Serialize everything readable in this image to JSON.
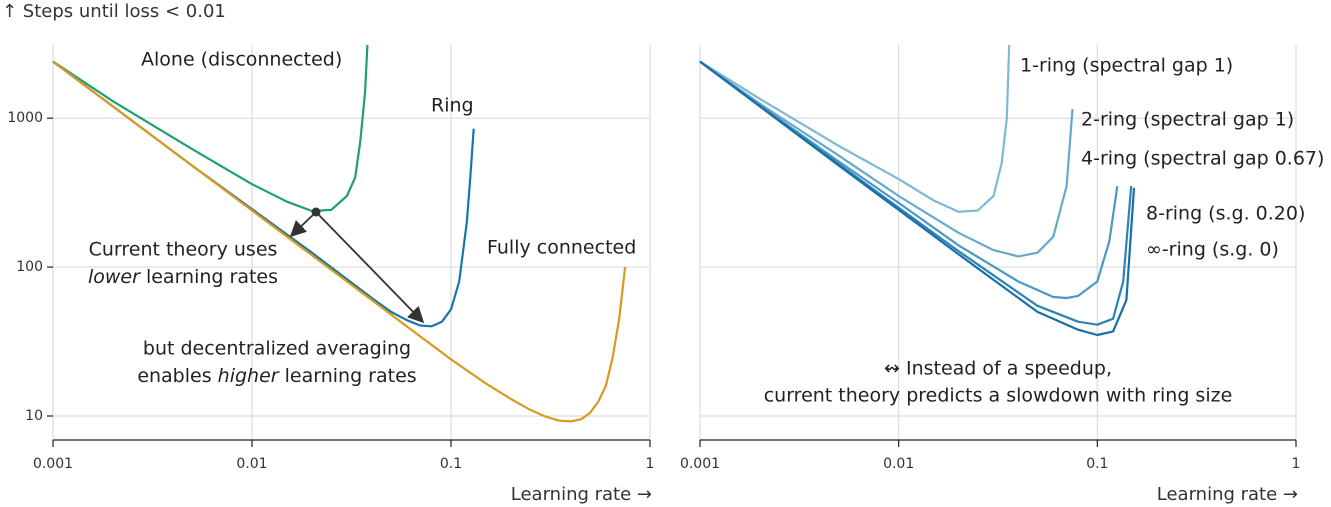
{
  "chart_data": [
    {
      "type": "line",
      "ylabel": "↑ Steps until loss < 0.01",
      "xlabel": "Learning rate →",
      "xscale": "log",
      "yscale": "log",
      "grid": true,
      "show_ytick_labels": true,
      "xlim": [
        0.001,
        1
      ],
      "ylim": [
        6.9,
        3100
      ],
      "xticks": [
        0.001,
        0.01,
        0.1,
        1
      ],
      "yticks": [
        10,
        100,
        1000
      ],
      "series": [
        {
          "name": "Alone (disconnected)",
          "color": "#1f9e78",
          "x": [
            0.001,
            0.002,
            0.005,
            0.01,
            0.015,
            0.02,
            0.025,
            0.03,
            0.033,
            0.035,
            0.037,
            0.038
          ],
          "values": [
            2400,
            1300,
            620,
            360,
            275,
            238,
            242,
            300,
            400,
            700,
            1500,
            3100
          ]
        },
        {
          "name": "Ring",
          "color": "#1777a8",
          "x": [
            0.001,
            0.002,
            0.005,
            0.01,
            0.02,
            0.04,
            0.05,
            0.06,
            0.07,
            0.08,
            0.09,
            0.1,
            0.11,
            0.12,
            0.125,
            0.13
          ],
          "values": [
            2400,
            1200,
            480,
            245,
            125,
            62,
            50,
            44,
            40.5,
            40,
            43,
            52,
            80,
            200,
            400,
            850
          ]
        },
        {
          "name": "Fully connected",
          "color": "#d99a1e",
          "x": [
            0.001,
            0.002,
            0.005,
            0.01,
            0.02,
            0.05,
            0.1,
            0.15,
            0.2,
            0.25,
            0.3,
            0.35,
            0.4,
            0.45,
            0.5,
            0.55,
            0.6,
            0.65,
            0.7,
            0.75
          ],
          "values": [
            2400,
            1200,
            480,
            240,
            120,
            48,
            24,
            16.5,
            13,
            11,
            9.9,
            9.3,
            9.2,
            9.5,
            10.5,
            12.5,
            16,
            25,
            45,
            100
          ]
        }
      ],
      "annotations": {
        "a1": "Current theory uses",
        "a2_em": "lower",
        "a2": " learning rates",
        "b1": "but decentralized averaging",
        "b2_pre": "enables ",
        "b2_em": "higher",
        "b2": " learning rates"
      }
    },
    {
      "type": "line",
      "xlabel": "Learning rate →",
      "xscale": "log",
      "yscale": "log",
      "grid": true,
      "show_ytick_labels": false,
      "xlim": [
        0.001,
        1
      ],
      "ylim": [
        6.9,
        3100
      ],
      "xticks": [
        0.001,
        0.01,
        0.1,
        1
      ],
      "yticks": [
        10,
        100,
        1000
      ],
      "series": [
        {
          "name": "1-ring (spectral gap 1)",
          "color": "#7fb8d3",
          "x": [
            0.001,
            0.002,
            0.005,
            0.01,
            0.015,
            0.02,
            0.025,
            0.03,
            0.033,
            0.035,
            0.036
          ],
          "values": [
            2400,
            1350,
            650,
            390,
            280,
            235,
            240,
            300,
            500,
            1000,
            3100
          ]
        },
        {
          "name": "2-ring (spectral gap 1)",
          "color": "#67a9cc",
          "x": [
            0.001,
            0.002,
            0.005,
            0.01,
            0.02,
            0.03,
            0.04,
            0.05,
            0.06,
            0.07,
            0.075
          ],
          "values": [
            2400,
            1250,
            560,
            300,
            170,
            130,
            118,
            125,
            160,
            350,
            1150
          ]
        },
        {
          "name": "4-ring (spectral gap 0.67)",
          "color": "#4b98c4",
          "x": [
            0.001,
            0.002,
            0.005,
            0.01,
            0.02,
            0.04,
            0.06,
            0.07,
            0.08,
            0.1,
            0.115,
            0.126
          ],
          "values": [
            2400,
            1220,
            510,
            270,
            140,
            80,
            63,
            62,
            64,
            80,
            150,
            350
          ]
        },
        {
          "name": "8-ring (s.g. 0.20)",
          "color": "#2d82b6",
          "x": [
            0.001,
            0.002,
            0.005,
            0.01,
            0.02,
            0.05,
            0.08,
            0.1,
            0.12,
            0.135,
            0.148
          ],
          "values": [
            2400,
            1210,
            490,
            250,
            128,
            55,
            43,
            41,
            45,
            80,
            350
          ]
        },
        {
          "name": "∞-ring (s.g. 0)",
          "color": "#186ea6",
          "x": [
            0.001,
            0.002,
            0.005,
            0.01,
            0.02,
            0.05,
            0.08,
            0.1,
            0.12,
            0.14,
            0.153
          ],
          "values": [
            2400,
            1200,
            480,
            242,
            122,
            50,
            38,
            35,
            37,
            60,
            340
          ]
        }
      ],
      "annotations": {
        "c1": "↭ Instead of a speedup,",
        "c2": "current theory predicts a slowdown with ring size"
      }
    }
  ]
}
